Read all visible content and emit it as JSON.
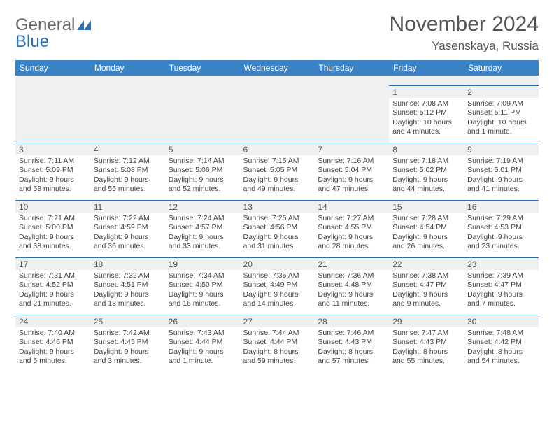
{
  "brand": {
    "name_part1": "General",
    "name_part2": "Blue"
  },
  "title": "November 2024",
  "location": "Yasenskaya, Russia",
  "colors": {
    "header_bg": "#3b83c7",
    "border": "#2d6fb8",
    "daynum_bg": "#eef0f1",
    "text": "#444"
  },
  "weekdays": [
    "Sunday",
    "Monday",
    "Tuesday",
    "Wednesday",
    "Thursday",
    "Friday",
    "Saturday"
  ],
  "weeks": [
    [
      {
        "blank": true
      },
      {
        "blank": true
      },
      {
        "blank": true
      },
      {
        "blank": true
      },
      {
        "blank": true
      },
      {
        "day": "1",
        "sunrise": "Sunrise: 7:08 AM",
        "sunset": "Sunset: 5:12 PM",
        "daylight": "Daylight: 10 hours and 4 minutes."
      },
      {
        "day": "2",
        "sunrise": "Sunrise: 7:09 AM",
        "sunset": "Sunset: 5:11 PM",
        "daylight": "Daylight: 10 hours and 1 minute."
      }
    ],
    [
      {
        "day": "3",
        "sunrise": "Sunrise: 7:11 AM",
        "sunset": "Sunset: 5:09 PM",
        "daylight": "Daylight: 9 hours and 58 minutes."
      },
      {
        "day": "4",
        "sunrise": "Sunrise: 7:12 AM",
        "sunset": "Sunset: 5:08 PM",
        "daylight": "Daylight: 9 hours and 55 minutes."
      },
      {
        "day": "5",
        "sunrise": "Sunrise: 7:14 AM",
        "sunset": "Sunset: 5:06 PM",
        "daylight": "Daylight: 9 hours and 52 minutes."
      },
      {
        "day": "6",
        "sunrise": "Sunrise: 7:15 AM",
        "sunset": "Sunset: 5:05 PM",
        "daylight": "Daylight: 9 hours and 49 minutes."
      },
      {
        "day": "7",
        "sunrise": "Sunrise: 7:16 AM",
        "sunset": "Sunset: 5:04 PM",
        "daylight": "Daylight: 9 hours and 47 minutes."
      },
      {
        "day": "8",
        "sunrise": "Sunrise: 7:18 AM",
        "sunset": "Sunset: 5:02 PM",
        "daylight": "Daylight: 9 hours and 44 minutes."
      },
      {
        "day": "9",
        "sunrise": "Sunrise: 7:19 AM",
        "sunset": "Sunset: 5:01 PM",
        "daylight": "Daylight: 9 hours and 41 minutes."
      }
    ],
    [
      {
        "day": "10",
        "sunrise": "Sunrise: 7:21 AM",
        "sunset": "Sunset: 5:00 PM",
        "daylight": "Daylight: 9 hours and 38 minutes."
      },
      {
        "day": "11",
        "sunrise": "Sunrise: 7:22 AM",
        "sunset": "Sunset: 4:59 PM",
        "daylight": "Daylight: 9 hours and 36 minutes."
      },
      {
        "day": "12",
        "sunrise": "Sunrise: 7:24 AM",
        "sunset": "Sunset: 4:57 PM",
        "daylight": "Daylight: 9 hours and 33 minutes."
      },
      {
        "day": "13",
        "sunrise": "Sunrise: 7:25 AM",
        "sunset": "Sunset: 4:56 PM",
        "daylight": "Daylight: 9 hours and 31 minutes."
      },
      {
        "day": "14",
        "sunrise": "Sunrise: 7:27 AM",
        "sunset": "Sunset: 4:55 PM",
        "daylight": "Daylight: 9 hours and 28 minutes."
      },
      {
        "day": "15",
        "sunrise": "Sunrise: 7:28 AM",
        "sunset": "Sunset: 4:54 PM",
        "daylight": "Daylight: 9 hours and 26 minutes."
      },
      {
        "day": "16",
        "sunrise": "Sunrise: 7:29 AM",
        "sunset": "Sunset: 4:53 PM",
        "daylight": "Daylight: 9 hours and 23 minutes."
      }
    ],
    [
      {
        "day": "17",
        "sunrise": "Sunrise: 7:31 AM",
        "sunset": "Sunset: 4:52 PM",
        "daylight": "Daylight: 9 hours and 21 minutes."
      },
      {
        "day": "18",
        "sunrise": "Sunrise: 7:32 AM",
        "sunset": "Sunset: 4:51 PM",
        "daylight": "Daylight: 9 hours and 18 minutes."
      },
      {
        "day": "19",
        "sunrise": "Sunrise: 7:34 AM",
        "sunset": "Sunset: 4:50 PM",
        "daylight": "Daylight: 9 hours and 16 minutes."
      },
      {
        "day": "20",
        "sunrise": "Sunrise: 7:35 AM",
        "sunset": "Sunset: 4:49 PM",
        "daylight": "Daylight: 9 hours and 14 minutes."
      },
      {
        "day": "21",
        "sunrise": "Sunrise: 7:36 AM",
        "sunset": "Sunset: 4:48 PM",
        "daylight": "Daylight: 9 hours and 11 minutes."
      },
      {
        "day": "22",
        "sunrise": "Sunrise: 7:38 AM",
        "sunset": "Sunset: 4:47 PM",
        "daylight": "Daylight: 9 hours and 9 minutes."
      },
      {
        "day": "23",
        "sunrise": "Sunrise: 7:39 AM",
        "sunset": "Sunset: 4:47 PM",
        "daylight": "Daylight: 9 hours and 7 minutes."
      }
    ],
    [
      {
        "day": "24",
        "sunrise": "Sunrise: 7:40 AM",
        "sunset": "Sunset: 4:46 PM",
        "daylight": "Daylight: 9 hours and 5 minutes."
      },
      {
        "day": "25",
        "sunrise": "Sunrise: 7:42 AM",
        "sunset": "Sunset: 4:45 PM",
        "daylight": "Daylight: 9 hours and 3 minutes."
      },
      {
        "day": "26",
        "sunrise": "Sunrise: 7:43 AM",
        "sunset": "Sunset: 4:44 PM",
        "daylight": "Daylight: 9 hours and 1 minute."
      },
      {
        "day": "27",
        "sunrise": "Sunrise: 7:44 AM",
        "sunset": "Sunset: 4:44 PM",
        "daylight": "Daylight: 8 hours and 59 minutes."
      },
      {
        "day": "28",
        "sunrise": "Sunrise: 7:46 AM",
        "sunset": "Sunset: 4:43 PM",
        "daylight": "Daylight: 8 hours and 57 minutes."
      },
      {
        "day": "29",
        "sunrise": "Sunrise: 7:47 AM",
        "sunset": "Sunset: 4:43 PM",
        "daylight": "Daylight: 8 hours and 55 minutes."
      },
      {
        "day": "30",
        "sunrise": "Sunrise: 7:48 AM",
        "sunset": "Sunset: 4:42 PM",
        "daylight": "Daylight: 8 hours and 54 minutes."
      }
    ]
  ]
}
